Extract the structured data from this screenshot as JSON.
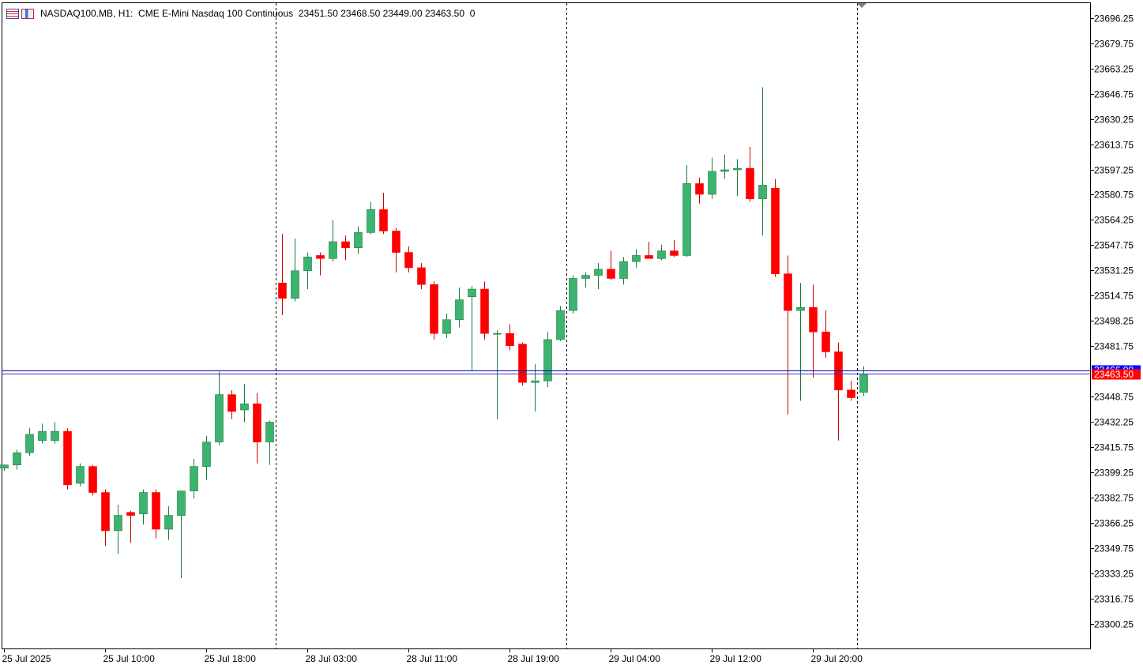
{
  "header": {
    "symbol": "NASDAQ100.MB, H1:",
    "description": "CME E-Mini Nasdaq 100 Continuous",
    "ohlc": "23451.50 23468.50 23449.00 23463.50",
    "volume": "0",
    "icons": [
      "chart-list-icon",
      "chart-bars-icon"
    ]
  },
  "colors": {
    "bull": "#3cb371",
    "bear": "#ff0000",
    "wick_bull": "#1e7a3a",
    "wick_bear": "#cc0000",
    "bid_line": "#0000cc",
    "ask_line": "#3c3c8c",
    "price_label_bg": "#ff0000",
    "bid_label_bg": "#0000ff"
  },
  "chart_data": {
    "type": "candlestick",
    "title": "NASDAQ100.MB, H1:  CME E-Mini Nasdaq 100 Continuous",
    "ylim": [
      23284,
      23706
    ],
    "y_ticks": [
      23696.25,
      23679.75,
      23663.25,
      23646.75,
      23630.25,
      23613.75,
      23597.25,
      23580.75,
      23564.25,
      23547.75,
      23531.25,
      23514.75,
      23498.25,
      23481.75,
      23448.75,
      23432.25,
      23415.75,
      23399.25,
      23382.75,
      23366.25,
      23349.75,
      23333.25,
      23316.75,
      23300.25
    ],
    "x_labels": [
      {
        "bar": 0,
        "label": "25 Jul 2025"
      },
      {
        "bar": 8,
        "label": "25 Jul 10:00"
      },
      {
        "bar": 16,
        "label": "25 Jul 18:00"
      },
      {
        "bar": 24,
        "label": "28 Jul 03:00"
      },
      {
        "bar": 32,
        "label": "28 Jul 11:00"
      },
      {
        "bar": 40,
        "label": "28 Jul 19:00"
      },
      {
        "bar": 48,
        "label": "29 Jul 04:00"
      },
      {
        "bar": 56,
        "label": "29 Jul 12:00"
      },
      {
        "bar": 64,
        "label": "29 Jul 20:00"
      }
    ],
    "day_separators": [
      21.5,
      44.5,
      67.5
    ],
    "current_price": 23463.5,
    "current_price_label": "23463.50",
    "bid_price": 23466.0,
    "bid_price_label": "23466.00",
    "candles": [
      [
        23402,
        23404,
        23400,
        23404
      ],
      [
        23404,
        23414,
        23401,
        23412
      ],
      [
        23412,
        23428,
        23410,
        23424
      ],
      [
        23420,
        23431,
        23418,
        23426
      ],
      [
        23420,
        23432,
        23418,
        23426
      ],
      [
        23426,
        23428,
        23388,
        23391
      ],
      [
        23392,
        23405,
        23390,
        23403
      ],
      [
        23403,
        23404,
        23384,
        23386
      ],
      [
        23386,
        23388,
        23351,
        23361
      ],
      [
        23361,
        23378,
        23346,
        23371
      ],
      [
        23373,
        23374,
        23353,
        23371
      ],
      [
        23372,
        23388,
        23365,
        23386
      ],
      [
        23386,
        23388,
        23356,
        23362
      ],
      [
        23362,
        23377,
        23355,
        23371
      ],
      [
        23371,
        23387,
        23330,
        23387
      ],
      [
        23387,
        23408,
        23382,
        23403
      ],
      [
        23403,
        23423,
        23394,
        23419
      ],
      [
        23419,
        23465,
        23417,
        23450
      ],
      [
        23450,
        23453,
        23434,
        23439
      ],
      [
        23440,
        23457,
        23432,
        23444
      ],
      [
        23444,
        23451,
        23405,
        23419
      ],
      [
        23419,
        23433,
        23404,
        23432
      ],
      [
        23523,
        23555,
        23502,
        23513
      ],
      [
        23513,
        23552,
        23511,
        23531
      ],
      [
        23531,
        23543,
        23519,
        23540
      ],
      [
        23541,
        23543,
        23528,
        23539
      ],
      [
        23539,
        23564,
        23537,
        23550
      ],
      [
        23550,
        23554,
        23538,
        23546
      ],
      [
        23546,
        23560,
        23542,
        23556
      ],
      [
        23556,
        23576,
        23555,
        23571
      ],
      [
        23571,
        23582,
        23555,
        23557
      ],
      [
        23557,
        23559,
        23530,
        23543
      ],
      [
        23543,
        23547,
        23530,
        23533
      ],
      [
        23533,
        23536,
        23519,
        23522
      ],
      [
        23522,
        23524,
        23486,
        23490
      ],
      [
        23490,
        23503,
        23487,
        23499
      ],
      [
        23499,
        23520,
        23494,
        23512
      ],
      [
        23514,
        23521,
        23466,
        23519
      ],
      [
        23519,
        23524,
        23486,
        23490
      ],
      [
        23490,
        23492,
        23434,
        23490
      ],
      [
        23490,
        23496,
        23479,
        23482
      ],
      [
        23483,
        23484,
        23456,
        23458
      ],
      [
        23458,
        23470,
        23439,
        23459
      ],
      [
        23459,
        23491,
        23455,
        23486
      ],
      [
        23486,
        23508,
        23485,
        23505
      ],
      [
        23505,
        23528,
        23503,
        23526
      ],
      [
        23526,
        23530,
        23520,
        23528
      ],
      [
        23528,
        23536,
        23519,
        23532
      ],
      [
        23532,
        23544,
        23525,
        23526
      ],
      [
        23526,
        23540,
        23522,
        23537
      ],
      [
        23537,
        23545,
        23533,
        23541
      ],
      [
        23541,
        23550,
        23539,
        23539
      ],
      [
        23539,
        23548,
        23538,
        23544
      ],
      [
        23544,
        23551,
        23540,
        23541
      ],
      [
        23541,
        23600,
        23540,
        23588
      ],
      [
        23588,
        23592,
        23575,
        23581
      ],
      [
        23581,
        23605,
        23578,
        23596
      ],
      [
        23596,
        23607,
        23591,
        23597
      ],
      [
        23597,
        23604,
        23580,
        23598
      ],
      [
        23598,
        23612,
        23576,
        23578
      ],
      [
        23578,
        23651,
        23554,
        23587
      ],
      [
        23585,
        23591,
        23527,
        23529
      ],
      [
        23529,
        23541,
        23437,
        23505
      ],
      [
        23505,
        23523,
        23446,
        23507
      ],
      [
        23507,
        23522,
        23461,
        23491
      ],
      [
        23491,
        23505,
        23474,
        23478
      ],
      [
        23478,
        23484,
        23420,
        23453
      ],
      [
        23453,
        23459,
        23446,
        23448
      ],
      [
        23451.5,
        23468.5,
        23449,
        23463.5
      ]
    ]
  }
}
